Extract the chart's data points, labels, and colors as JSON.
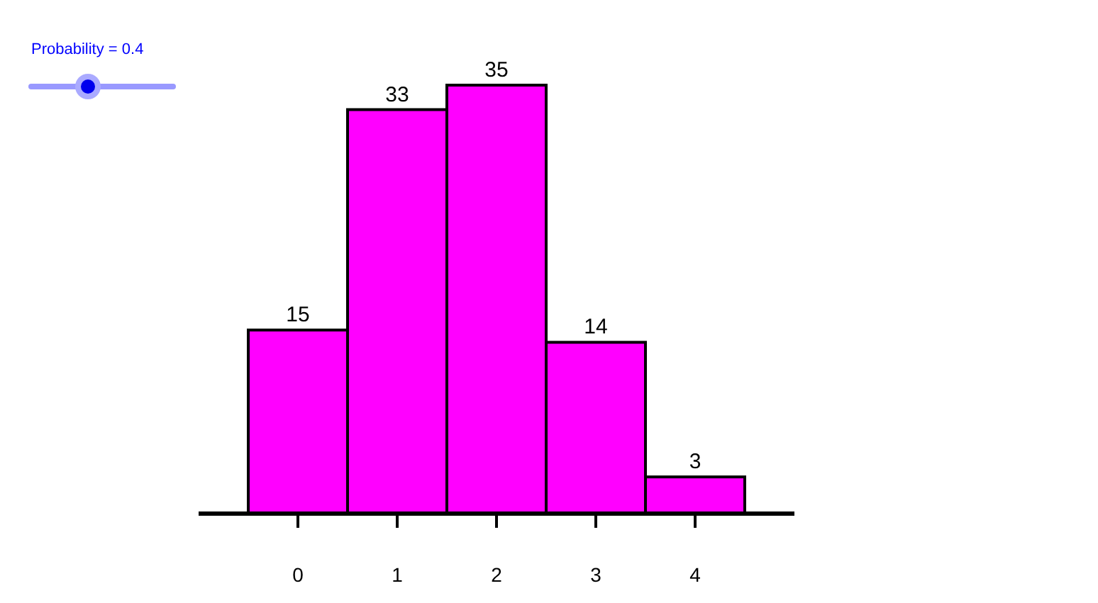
{
  "chart_data": {
    "type": "bar",
    "categories": [
      "0",
      "1",
      "2",
      "3",
      "4"
    ],
    "values": [
      15,
      33,
      35,
      14,
      3
    ],
    "color": "#ff00ff",
    "data_labels": true,
    "tick_labels": "x",
    "annotations": [
      "Probability = 0.4"
    ]
  }
}
